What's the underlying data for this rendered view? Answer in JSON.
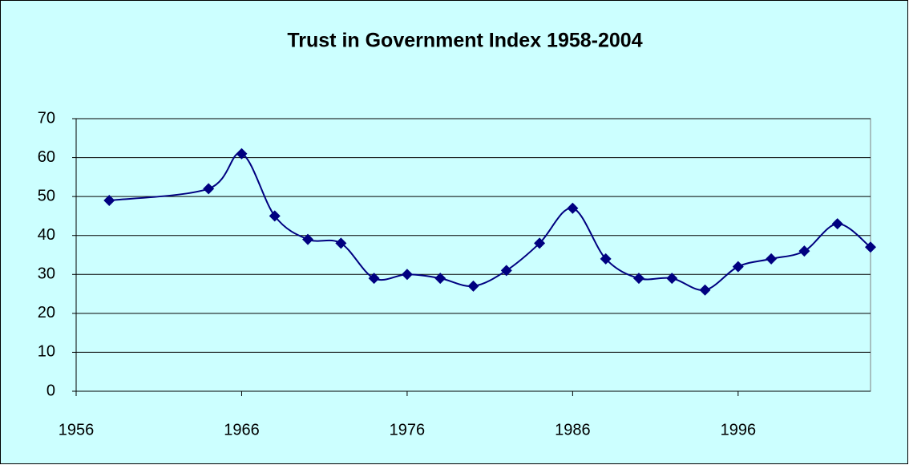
{
  "chart_data": {
    "type": "line",
    "title": "Trust in Government Index 1958-2004",
    "x": [
      1958,
      1964,
      1966,
      1968,
      1970,
      1972,
      1974,
      1976,
      1978,
      1980,
      1982,
      1984,
      1986,
      1988,
      1990,
      1992,
      1994,
      1996,
      1998,
      2000,
      2002,
      2004
    ],
    "series": [
      {
        "name": "Trust in Government Index",
        "color": "#000080",
        "values": [
          49,
          52,
          61,
          45,
          39,
          38,
          29,
          30,
          29,
          27,
          31,
          38,
          47,
          34,
          29,
          29,
          26,
          32,
          34,
          36,
          43,
          37
        ]
      }
    ],
    "xlim": [
      1956,
      2004
    ],
    "xticks": [
      1956,
      1966,
      1976,
      1986,
      1996
    ],
    "ylim": [
      0,
      70
    ],
    "yticks": [
      0,
      10,
      20,
      30,
      40,
      50,
      60,
      70
    ],
    "grid": true
  }
}
